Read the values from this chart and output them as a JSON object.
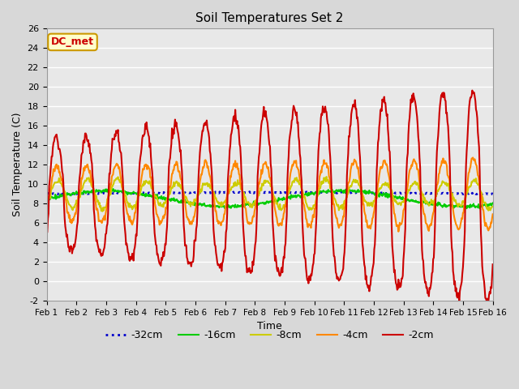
{
  "title": "Soil Temperatures Set 2",
  "xlabel": "Time",
  "ylabel": "Soil Temperature (C)",
  "ylim": [
    -2,
    26
  ],
  "xlim": [
    0,
    15
  ],
  "fig_facecolor": "#d8d8d8",
  "ax_facecolor": "#e8e8e8",
  "annotation_text": "DC_met",
  "annotation_fg": "#cc0000",
  "annotation_bg": "#ffffcc",
  "annotation_border": "#cc9900",
  "legend_labels": [
    "-32cm",
    "-16cm",
    "-8cm",
    "-4cm",
    "-2cm"
  ],
  "line_colors": [
    "#0000cc",
    "#00cc00",
    "#cccc00",
    "#ff8800",
    "#cc0000"
  ],
  "xtick_labels": [
    "Feb 1",
    "Feb 2",
    "Feb 3",
    "Feb 4",
    "Feb 5",
    "Feb 6",
    "Feb 7",
    "Feb 8",
    "Feb 9",
    "Feb 10",
    "Feb 11",
    "Feb 12",
    "Feb 13",
    "Feb 14",
    "Feb 15",
    "Feb 16"
  ],
  "ytick_vals": [
    -2,
    0,
    2,
    4,
    6,
    8,
    10,
    12,
    14,
    16,
    18,
    20,
    22,
    24,
    26
  ],
  "grid_color": "#ffffff",
  "pts_per_day": 48,
  "n_days": 15,
  "base_temp": 9.0,
  "deep_amp": 0.15,
  "mid2_amp": 0.8,
  "mid1_amp": 1.3,
  "shallow_amp": 2.8,
  "surf_amp_base": 5.5,
  "surf_amp_growth": 5.5,
  "surf_phase": -0.5,
  "shallow_phase": -0.6,
  "mid1_phase": -0.8,
  "mid2_period": 8.0,
  "mid2_phase": 0.0
}
